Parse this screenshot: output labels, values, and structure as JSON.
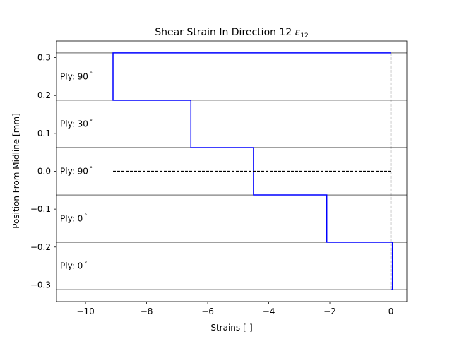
{
  "chart_data": {
    "type": "line",
    "title": "Shear Strain In Direction 12 ",
    "title_symbol": "ε",
    "title_subscript": "12",
    "xlabel": "Strains [-]",
    "ylabel": "Position From Midline [mm]",
    "xlim": [
      -10.95,
      0.52
    ],
    "ylim": [
      -0.344,
      0.344
    ],
    "x_ticks": [
      {
        "value": -10,
        "label": "−10"
      },
      {
        "value": -8,
        "label": "−8"
      },
      {
        "value": -6,
        "label": "−6"
      },
      {
        "value": -4,
        "label": "−4"
      },
      {
        "value": -2,
        "label": "−2"
      },
      {
        "value": 0,
        "label": "0"
      }
    ],
    "y_ticks": [
      {
        "value": 0.3,
        "label": "0.3"
      },
      {
        "value": 0.2,
        "label": "0.2"
      },
      {
        "value": 0.1,
        "label": "0.1"
      },
      {
        "value": 0.0,
        "label": "0.0"
      },
      {
        "value": -0.1,
        "label": "−0.1"
      },
      {
        "value": -0.2,
        "label": "−0.2"
      },
      {
        "value": -0.3,
        "label": "−0.3"
      }
    ],
    "ply_boundaries": [
      0.3125,
      0.1875,
      0.0625,
      -0.0625,
      -0.1875,
      -0.3125
    ],
    "plies": [
      {
        "label": "Ply: 90",
        "angle_symbol": "°",
        "label_y": 0.25
      },
      {
        "label": "Ply: 30",
        "angle_symbol": "°",
        "label_y": 0.125
      },
      {
        "label": "Ply: 90",
        "angle_symbol": "°",
        "label_y": 0.0
      },
      {
        "label": "Ply: 0",
        "angle_symbol": "°",
        "label_y": -0.125
      },
      {
        "label": "Ply: 0",
        "angle_symbol": "°",
        "label_y": -0.25
      }
    ],
    "series": [
      {
        "color": "#0000ff",
        "style": "solid",
        "points": [
          [
            0.0,
            0.3125
          ],
          [
            -9.1,
            0.3125
          ],
          [
            -9.1,
            0.1875
          ],
          [
            -6.55,
            0.1875
          ],
          [
            -6.55,
            0.0625
          ],
          [
            -4.5,
            0.0625
          ],
          [
            -4.5,
            -0.0625
          ],
          [
            -2.1,
            -0.0625
          ],
          [
            -2.1,
            -0.1875
          ],
          [
            0.05,
            -0.1875
          ],
          [
            0.05,
            -0.3125
          ],
          [
            0.0,
            -0.3125
          ]
        ]
      },
      {
        "color": "#000000",
        "style": "dashed",
        "points": [
          [
            0.0,
            0.3125
          ],
          [
            0.0,
            -0.3125
          ]
        ]
      },
      {
        "color": "#000000",
        "style": "dashed",
        "points": [
          [
            -9.1,
            0.0
          ],
          [
            0.0,
            0.0
          ]
        ]
      }
    ],
    "grid": false,
    "legend": "none"
  }
}
